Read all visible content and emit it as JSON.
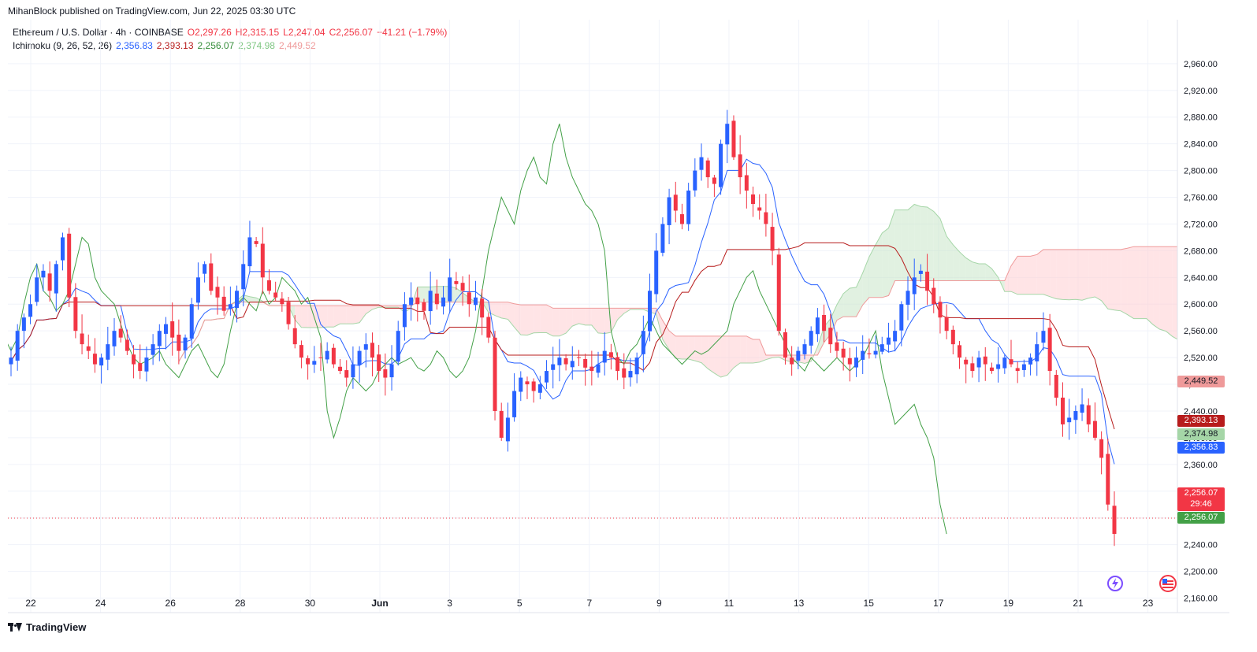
{
  "header": {
    "published": "MihanBlock published on TradingView.com, Jun 22, 2025 03:30 UTC"
  },
  "legend": {
    "symbol": "Ethereum / U.S. Dollar · 4h · COINBASE",
    "open": "O2,297.26",
    "high": "H2,315.15",
    "low": "L2,247.04",
    "close": "C2,256.07",
    "change": "−41.21 (−1.79%)",
    "ichimoku_label": "Ichimoku (9, 26, 52, 26)",
    "ichimoku_values": [
      "2,356.83",
      "2,393.13",
      "2,256.07",
      "2,374.98",
      "2,449.52"
    ]
  },
  "price_tags": {
    "senkou_b": "2,449.52",
    "kijun": "2,393.13",
    "senkou_a": "2,374.98",
    "tenkan": "2,356.83",
    "last_price": "2,256.07",
    "countdown": "29:46",
    "chikou": "2,256.07"
  },
  "colors": {
    "up": "#2962ff",
    "down": "#f23645",
    "tenkan": "#2962ff",
    "kijun": "#b71c1c",
    "chikou": "#43a047",
    "cloud_bull": "#c8e6c9",
    "cloud_bear": "#ffcdd2"
  },
  "footer": {
    "brand": "TradingView"
  },
  "chart_data": {
    "type": "candlestick",
    "y_ticks": [
      "2,960.00",
      "2,920.00",
      "2,880.00",
      "2,840.00",
      "2,800.00",
      "2,760.00",
      "2,720.00",
      "2,680.00",
      "2,640.00",
      "2,600.00",
      "2,560.00",
      "2,520.00",
      "2,480.00",
      "2,440.00",
      "2,400.00",
      "2,360.00",
      "2,320.00",
      "2,280.00",
      "2,240.00",
      "2,200.00",
      "2,160.00"
    ],
    "x_ticks": [
      "22",
      "24",
      "26",
      "28",
      "30",
      "Jun",
      "3",
      "5",
      "7",
      "9",
      "11",
      "13",
      "15",
      "17",
      "19",
      "21",
      "23"
    ],
    "ylim": [
      2150,
      2970
    ],
    "closes": [
      2520,
      2560,
      2580,
      2600,
      2640,
      2650,
      2620,
      2660,
      2700,
      2610,
      2560,
      2540,
      2530,
      2510,
      2520,
      2540,
      2560,
      2550,
      2530,
      2510,
      2500,
      2520,
      2540,
      2560,
      2570,
      2550,
      2530,
      2550,
      2600,
      2640,
      2660,
      2620,
      2610,
      2590,
      2600,
      2620,
      2660,
      2700,
      2690,
      2640,
      2620,
      2610,
      2600,
      2570,
      2540,
      2520,
      2510,
      2515,
      2520,
      2530,
      2510,
      2500,
      2490,
      2510,
      2530,
      2540,
      2520,
      2500,
      2490,
      2510,
      2560,
      2600,
      2610,
      2600,
      2590,
      2620,
      2600,
      2610,
      2640,
      2630,
      2620,
      2600,
      2610,
      2580,
      2550,
      2440,
      2400,
      2430,
      2470,
      2490,
      2480,
      2470,
      2480,
      2500,
      2510,
      2520,
      2510,
      2515,
      2520,
      2505,
      2500,
      2510,
      2530,
      2520,
      2500,
      2490,
      2500,
      2520,
      2560,
      2620,
      2680,
      2720,
      2760,
      2740,
      2720,
      2770,
      2800,
      2820,
      2790,
      2780,
      2840,
      2870,
      2820,
      2790,
      2770,
      2750,
      2740,
      2720,
      2680,
      2560,
      2520,
      2510,
      2530,
      2540,
      2560,
      2580,
      2560,
      2540,
      2530,
      2520,
      2510,
      2520,
      2530,
      2525,
      2530,
      2540,
      2550,
      2560,
      2600,
      2620,
      2640,
      2650,
      2620,
      2600,
      2580,
      2560,
      2540,
      2520,
      2510,
      2500,
      2520,
      2510,
      2500,
      2510,
      2520,
      2510,
      2500,
      2510,
      2520,
      2540,
      2560,
      2500,
      2460,
      2420,
      2430,
      2440,
      2450,
      2420,
      2400,
      2370,
      2300,
      2256
    ],
    "last": 2256.07,
    "series": [
      {
        "name": "",
        "values": [
          "2,356.83"
        ]
      },
      {
        "name": "",
        "values": [
          "2,393.13"
        ]
      },
      {
        "name": "",
        "values": [
          "2,256.07"
        ]
      },
      {
        "name": "",
        "values": [
          "2,374.98"
        ]
      },
      {
        "name": "",
        "values": [
          "2,449.52"
        ]
      }
    ]
  }
}
